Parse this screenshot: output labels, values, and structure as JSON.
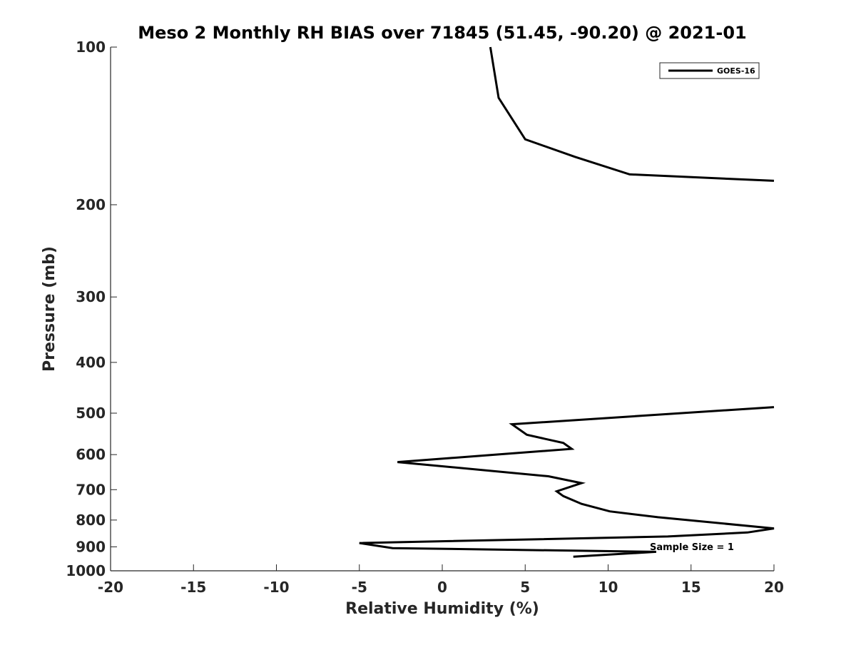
{
  "chart_data": {
    "type": "line",
    "title": "Meso 2 Monthly RH BIAS over 71845 (51.45, -90.20) @ 2021-01",
    "xlabel": "Relative Humidity (%)",
    "ylabel": "Pressure (mb)",
    "xlim": [
      -20,
      20
    ],
    "ylim": [
      100,
      1000
    ],
    "yscale": "log",
    "y_reversed": true,
    "x_ticks": [
      -20,
      -15,
      -10,
      -5,
      0,
      5,
      10,
      15,
      20
    ],
    "y_ticks": [
      100,
      200,
      300,
      400,
      500,
      600,
      700,
      800,
      900,
      1000
    ],
    "grid": false,
    "legend_position": "top-right",
    "annotation": "Sample Size = 1",
    "series": [
      {
        "name": "GOES-16",
        "color": "#000000",
        "segments": [
          [
            {
              "x": 2.9,
              "p": 100
            },
            {
              "x": 3.4,
              "p": 125
            },
            {
              "x": 5.0,
              "p": 150
            },
            {
              "x": 8.0,
              "p": 162
            },
            {
              "x": 11.3,
              "p": 175
            },
            {
              "x": 20.0,
              "p": 180
            }
          ],
          [
            {
              "x": 20.0,
              "p": 487
            },
            {
              "x": 4.2,
              "p": 525
            },
            {
              "x": 5.1,
              "p": 550
            },
            {
              "x": 7.3,
              "p": 570
            },
            {
              "x": 7.8,
              "p": 585
            },
            {
              "x": -2.7,
              "p": 620
            },
            {
              "x": 6.4,
              "p": 660
            },
            {
              "x": 8.4,
              "p": 680
            },
            {
              "x": 6.9,
              "p": 705
            },
            {
              "x": 7.3,
              "p": 720
            },
            {
              "x": 8.4,
              "p": 745
            },
            {
              "x": 10.1,
              "p": 770
            },
            {
              "x": 13.0,
              "p": 790
            },
            {
              "x": 20.0,
              "p": 830
            },
            {
              "x": 18.4,
              "p": 845
            },
            {
              "x": 13.6,
              "p": 860
            },
            {
              "x": -5.0,
              "p": 885
            },
            {
              "x": -3.0,
              "p": 905
            },
            {
              "x": 12.9,
              "p": 920
            },
            {
              "x": 7.9,
              "p": 940
            }
          ]
        ]
      }
    ]
  }
}
